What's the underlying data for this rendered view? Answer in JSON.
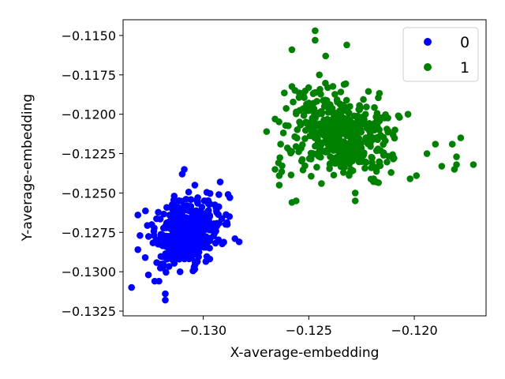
{
  "chart_data": {
    "type": "scatter",
    "title": "",
    "xlabel": "X-average-embedding",
    "ylabel": "Y-average-embedding",
    "xlim": [
      -0.1338,
      -0.1166
    ],
    "ylim": [
      -0.1328,
      -0.114
    ],
    "x_ticks": [
      -0.13,
      -0.125,
      -0.12
    ],
    "x_tick_labels": [
      "−0.130",
      "−0.125",
      "−0.120"
    ],
    "y_ticks": [
      -0.115,
      -0.1175,
      -0.12,
      -0.1225,
      -0.125,
      -0.1275,
      -0.13,
      -0.1325
    ],
    "y_tick_labels": [
      "−0.1150",
      "−0.1175",
      "−0.1200",
      "−0.1225",
      "−0.1250",
      "−0.1275",
      "−0.1300",
      "−0.1325"
    ],
    "grid": false,
    "legend_position": "top-right",
    "series": [
      {
        "name": "0",
        "color": "#0000ff",
        "cluster": {
          "center": [
            -0.1308,
            -0.1275
          ],
          "spread": [
            0.0009,
            0.00115
          ],
          "count": 420,
          "correlation": 0.3
        },
        "points": [
          [
            -0.1334,
            -0.131
          ],
          [
            -0.1318,
            -0.1318
          ],
          [
            -0.1318,
            -0.1314
          ],
          [
            -0.1323,
            -0.1306
          ],
          [
            -0.1321,
            -0.1306
          ],
          [
            -0.1326,
            -0.1302
          ],
          [
            -0.1331,
            -0.1286
          ],
          [
            -0.1331,
            -0.1264
          ],
          [
            -0.133,
            -0.1277
          ],
          [
            -0.1311,
            -0.13
          ],
          [
            -0.1292,
            -0.1243
          ],
          [
            -0.1285,
            -0.1279
          ],
          [
            -0.1283,
            -0.1281
          ],
          [
            -0.1309,
            -0.1235
          ],
          [
            -0.131,
            -0.1238
          ],
          [
            -0.1304,
            -0.1245
          ]
        ]
      },
      {
        "name": "1",
        "color": "#008000",
        "cluster": {
          "center": [
            -0.1236,
            -0.1212
          ],
          "spread": [
            0.00125,
            0.0014
          ],
          "count": 520,
          "correlation": -0.25
        },
        "points": [
          [
            -0.127,
            -0.1211
          ],
          [
            -0.1266,
            -0.1203
          ],
          [
            -0.1266,
            -0.1235
          ],
          [
            -0.1264,
            -0.1239
          ],
          [
            -0.1264,
            -0.1245
          ],
          [
            -0.1258,
            -0.1159
          ],
          [
            -0.1258,
            -0.1256
          ],
          [
            -0.1256,
            -0.1255
          ],
          [
            -0.1247,
            -0.1147
          ],
          [
            -0.1247,
            -0.1153
          ],
          [
            -0.1245,
            -0.1175
          ],
          [
            -0.1244,
            -0.1244
          ],
          [
            -0.1242,
            -0.1163
          ],
          [
            -0.1232,
            -0.1156
          ],
          [
            -0.1228,
            -0.125
          ],
          [
            -0.1228,
            -0.1255
          ],
          [
            -0.1218,
            -0.1243
          ],
          [
            -0.1211,
            -0.1237
          ],
          [
            -0.1207,
            -0.1202
          ],
          [
            -0.1203,
            -0.12
          ],
          [
            -0.1202,
            -0.1241
          ],
          [
            -0.1199,
            -0.1239
          ],
          [
            -0.1194,
            -0.1225
          ],
          [
            -0.119,
            -0.1219
          ],
          [
            -0.1187,
            -0.1233
          ],
          [
            -0.1182,
            -0.1219
          ],
          [
            -0.1181,
            -0.1235
          ],
          [
            -0.118,
            -0.1227
          ],
          [
            -0.118,
            -0.1232
          ],
          [
            -0.1172,
            -0.1232
          ],
          [
            -0.1178,
            -0.1215
          ]
        ]
      }
    ]
  }
}
